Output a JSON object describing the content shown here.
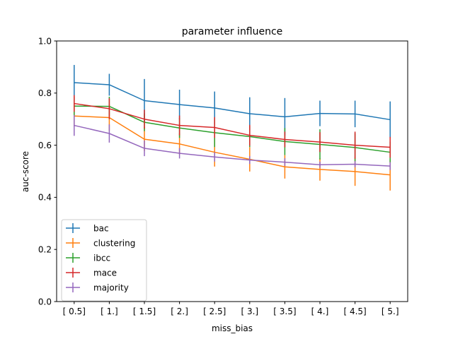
{
  "chart_data": {
    "type": "line",
    "title": "parameter influence",
    "xlabel": "miss_bias",
    "ylabel": "auc-score",
    "categories": [
      "[ 0.5]",
      "[ 1.]",
      "[ 1.5]",
      "[ 2.]",
      "[ 2.5]",
      "[ 3.]",
      "[ 3.5]",
      "[ 4.]",
      "[ 4.5]",
      "[ 5.]"
    ],
    "ylim": [
      0.0,
      1.0
    ],
    "yticks": [
      "0.0",
      "0.2",
      "0.4",
      "0.6",
      "0.8",
      "1.0"
    ],
    "grid": false,
    "legend_position": "lower-left",
    "series": [
      {
        "name": "bac",
        "color": "#1f77b4",
        "values": [
          0.84,
          0.832,
          0.771,
          0.756,
          0.743,
          0.721,
          0.709,
          0.722,
          0.72,
          0.698
        ],
        "errors": [
          0.068,
          0.042,
          0.083,
          0.057,
          0.063,
          0.063,
          0.072,
          0.049,
          0.051,
          0.07
        ]
      },
      {
        "name": "clustering",
        "color": "#ff7f0e",
        "values": [
          0.712,
          0.706,
          0.623,
          0.605,
          0.573,
          0.546,
          0.517,
          0.507,
          0.499,
          0.486
        ],
        "errors": [
          0.04,
          0.05,
          0.045,
          0.04,
          0.055,
          0.047,
          0.045,
          0.043,
          0.055,
          0.06
        ]
      },
      {
        "name": "ibcc",
        "color": "#2ca02c",
        "values": [
          0.75,
          0.749,
          0.688,
          0.666,
          0.648,
          0.633,
          0.614,
          0.603,
          0.591,
          0.573
        ],
        "errors": [
          0.035,
          0.037,
          0.034,
          0.038,
          0.055,
          0.04,
          0.052,
          0.058,
          0.055,
          0.04
        ]
      },
      {
        "name": "mace",
        "color": "#d62728",
        "values": [
          0.76,
          0.74,
          0.7,
          0.676,
          0.668,
          0.638,
          0.622,
          0.612,
          0.6,
          0.592
        ],
        "errors": [
          0.032,
          0.04,
          0.036,
          0.038,
          0.04,
          0.04,
          0.03,
          0.038,
          0.052,
          0.04
        ]
      },
      {
        "name": "majority",
        "color": "#9467bd",
        "values": [
          0.676,
          0.645,
          0.588,
          0.569,
          0.555,
          0.543,
          0.535,
          0.525,
          0.527,
          0.52
        ],
        "errors": [
          0.04,
          0.035,
          0.03,
          0.02,
          0.018,
          0.015,
          0.015,
          0.012,
          0.012,
          0.015
        ]
      }
    ]
  }
}
